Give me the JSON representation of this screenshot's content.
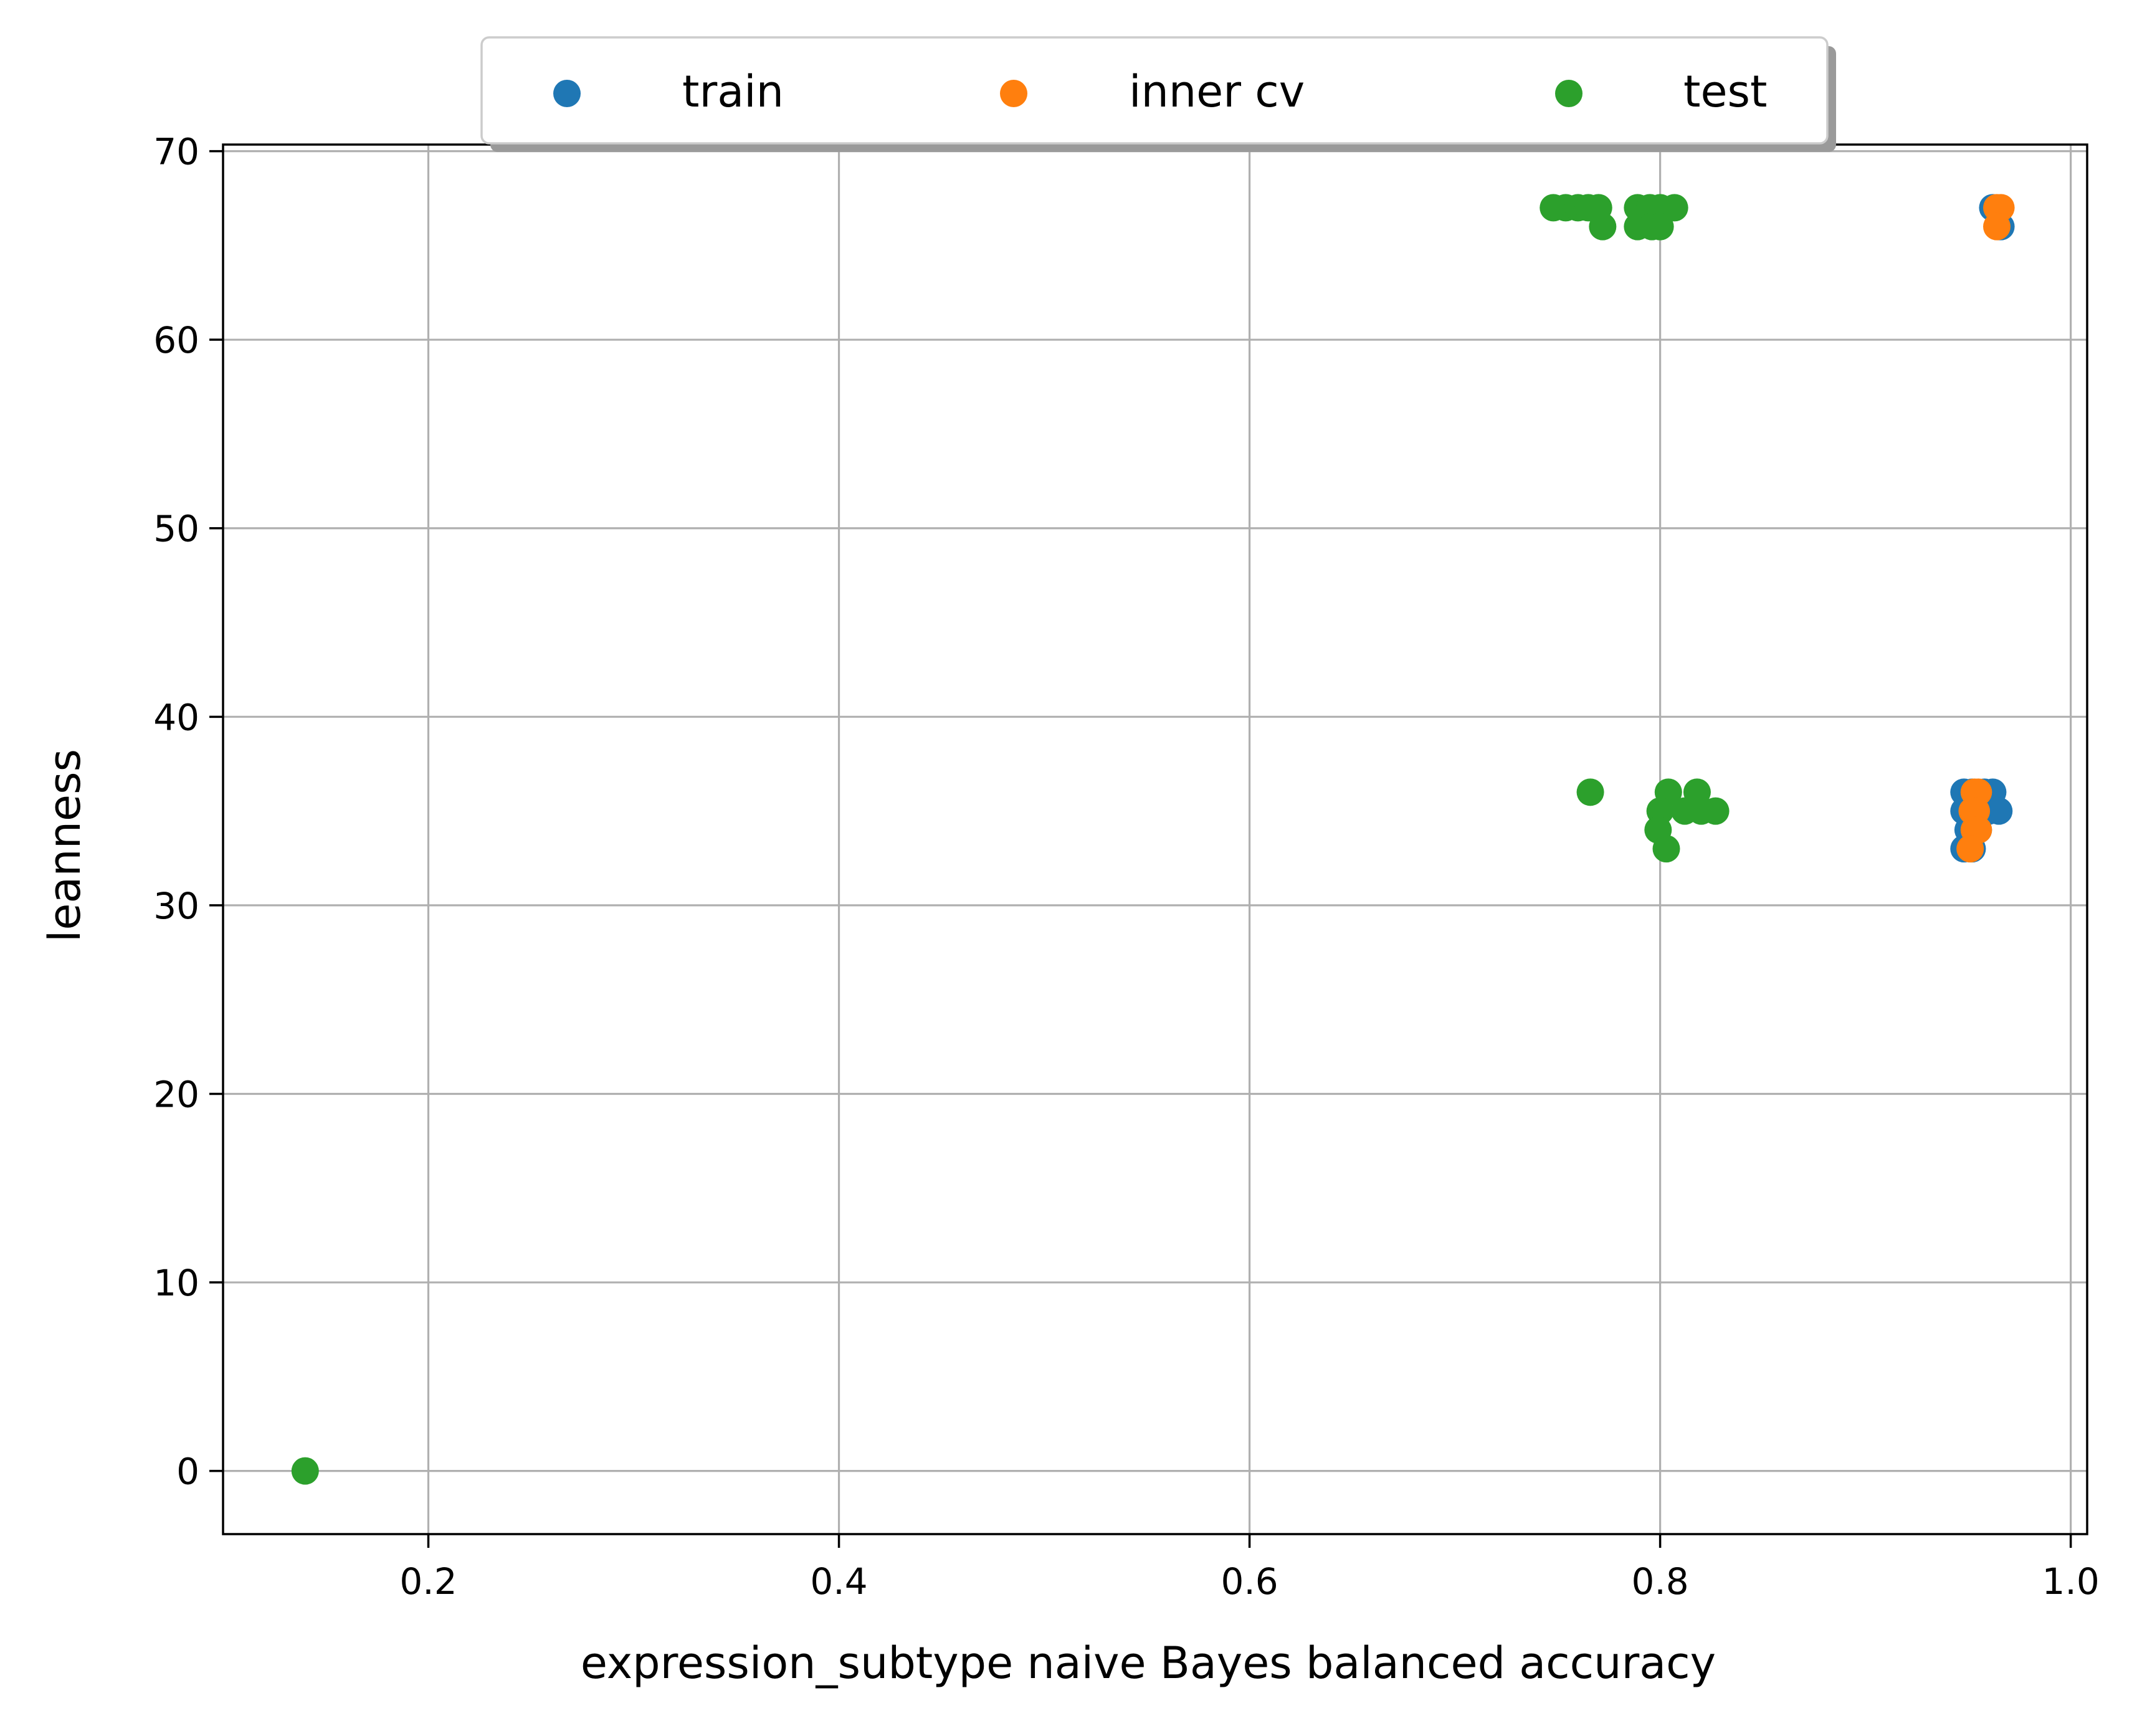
{
  "chart_data": {
    "type": "scatter",
    "xlabel": "expression_subtype naive Bayes balanced accuracy",
    "ylabel": "leanness",
    "xlim": [
      0.1,
      1.008
    ],
    "ylim": [
      -3.35,
      70.35
    ],
    "xticks": [
      0.2,
      0.4,
      0.6,
      0.8,
      1.0
    ],
    "xtick_labels": [
      "0.2",
      "0.4",
      "0.6",
      "0.8",
      "1.0"
    ],
    "yticks": [
      0,
      10,
      20,
      30,
      40,
      50,
      60,
      70
    ],
    "ytick_labels": [
      "0",
      "10",
      "20",
      "30",
      "40",
      "50",
      "60",
      "70"
    ],
    "grid": true,
    "legend": {
      "placement": "top-center, above plot",
      "columns": 3,
      "shadow": true
    },
    "series": [
      {
        "name": "train",
        "color": "#1f77b4",
        "points": [
          [
            0.962,
            67
          ],
          [
            0.966,
            66
          ],
          [
            0.965,
            66
          ],
          [
            0.948,
            36
          ],
          [
            0.952,
            36
          ],
          [
            0.958,
            36
          ],
          [
            0.962,
            36
          ],
          [
            0.948,
            35
          ],
          [
            0.953,
            35
          ],
          [
            0.96,
            35
          ],
          [
            0.965,
            35
          ],
          [
            0.95,
            34
          ],
          [
            0.955,
            34
          ],
          [
            0.948,
            33
          ],
          [
            0.952,
            33
          ]
        ]
      },
      {
        "name": "inner cv",
        "color": "#ff7f0e",
        "points": [
          [
            0.964,
            67
          ],
          [
            0.966,
            67
          ],
          [
            0.964,
            66
          ],
          [
            0.953,
            36
          ],
          [
            0.955,
            36
          ],
          [
            0.952,
            35
          ],
          [
            0.954,
            35
          ],
          [
            0.953,
            34
          ],
          [
            0.955,
            34
          ],
          [
            0.951,
            33
          ]
        ]
      },
      {
        "name": "test",
        "color": "#2ca02c",
        "points": [
          [
            0.14,
            0
          ],
          [
            0.748,
            67
          ],
          [
            0.754,
            67
          ],
          [
            0.76,
            67
          ],
          [
            0.765,
            67
          ],
          [
            0.77,
            67
          ],
          [
            0.772,
            66
          ],
          [
            0.789,
            67
          ],
          [
            0.795,
            67
          ],
          [
            0.8,
            67
          ],
          [
            0.807,
            67
          ],
          [
            0.789,
            66
          ],
          [
            0.796,
            66
          ],
          [
            0.8,
            66
          ],
          [
            0.766,
            36
          ],
          [
            0.804,
            36
          ],
          [
            0.818,
            36
          ],
          [
            0.8,
            35
          ],
          [
            0.812,
            35
          ],
          [
            0.82,
            35
          ],
          [
            0.827,
            35
          ],
          [
            0.799,
            34
          ],
          [
            0.803,
            33
          ]
        ]
      }
    ]
  }
}
